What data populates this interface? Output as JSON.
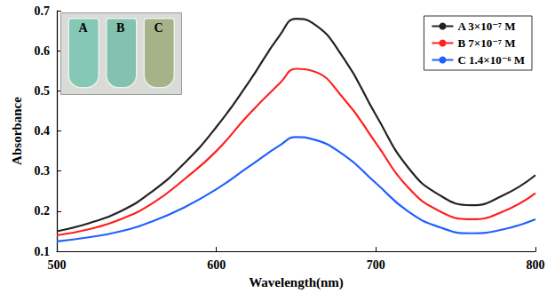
{
  "chart_data": {
    "type": "line",
    "x_label": "Wavelength(nm)",
    "y_label": "Absorbance",
    "annotations": [
      "A",
      "B",
      "C"
    ],
    "x": [
      500,
      520,
      540,
      560,
      580,
      600,
      620,
      640,
      650,
      660,
      680,
      700,
      720,
      740,
      760,
      780,
      800
    ],
    "series": [
      {
        "name": "A 3×10⁻⁷ M",
        "color": "#222222",
        "values": [
          0.15,
          0.17,
          0.2,
          0.25,
          0.32,
          0.41,
          0.52,
          0.64,
          0.68,
          0.67,
          0.58,
          0.44,
          0.31,
          0.24,
          0.215,
          0.24,
          0.29
        ]
      },
      {
        "name": "B 7×10⁻⁷ M",
        "color": "#ff2020",
        "values": [
          0.14,
          0.155,
          0.18,
          0.22,
          0.28,
          0.35,
          0.44,
          0.52,
          0.555,
          0.55,
          0.48,
          0.37,
          0.26,
          0.2,
          0.18,
          0.2,
          0.245
        ]
      },
      {
        "name": "C 1.4×10⁻⁶ M",
        "color": "#2060ff",
        "values": [
          0.125,
          0.135,
          0.15,
          0.175,
          0.21,
          0.255,
          0.31,
          0.365,
          0.385,
          0.38,
          0.34,
          0.27,
          0.2,
          0.16,
          0.145,
          0.155,
          0.18
        ]
      }
    ],
    "xlim": [
      500,
      800
    ],
    "xticks": [
      500,
      600,
      700,
      800
    ],
    "ylim": [
      0.1,
      0.7
    ],
    "yticks": [
      0.1,
      0.2,
      0.3,
      0.4,
      0.5,
      0.6,
      0.7
    ],
    "grid": false,
    "legend": "top-right"
  }
}
